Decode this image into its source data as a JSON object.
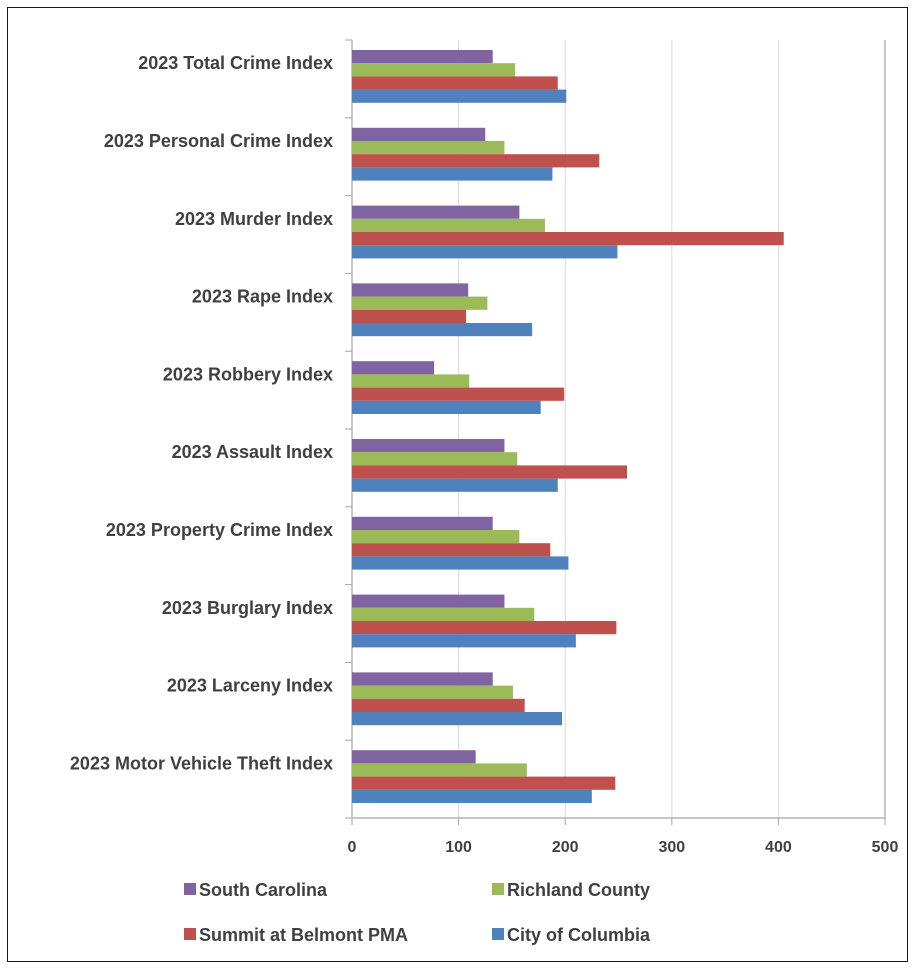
{
  "chart_data": {
    "type": "bar",
    "orientation": "horizontal",
    "categories": [
      "2023 Total Crime Index",
      "2023 Personal Crime Index",
      "2023 Murder Index",
      "2023 Rape Index",
      "2023 Robbery Index",
      "2023 Assault Index",
      "2023 Property Crime Index",
      "2023 Burglary Index",
      "2023 Larceny Index",
      "2023 Motor Vehicle Theft Index"
    ],
    "series": [
      {
        "name": "South Carolina",
        "color": "#8064a2",
        "values": [
          132,
          125,
          157,
          109,
          77,
          143,
          132,
          143,
          132,
          116
        ]
      },
      {
        "name": "Richland County",
        "color": "#9bbb59",
        "values": [
          153,
          143,
          181,
          127,
          110,
          155,
          157,
          171,
          151,
          164
        ]
      },
      {
        "name": "Summit at Belmont PMA",
        "color": "#c0504d",
        "values": [
          193,
          232,
          405,
          107,
          199,
          258,
          186,
          248,
          162,
          247
        ]
      },
      {
        "name": "City of Columbia",
        "color": "#4f81bd",
        "values": [
          201,
          188,
          249,
          169,
          177,
          193,
          203,
          210,
          197,
          225
        ]
      }
    ],
    "xlim": [
      0,
      500
    ],
    "xticks": [
      "0",
      "100",
      "200",
      "300",
      "400",
      "500"
    ],
    "grid": true,
    "legend_position": "bottom",
    "legend_order": [
      "South Carolina",
      "Richland County",
      "Summit at Belmont PMA",
      "City of Columbia"
    ]
  }
}
